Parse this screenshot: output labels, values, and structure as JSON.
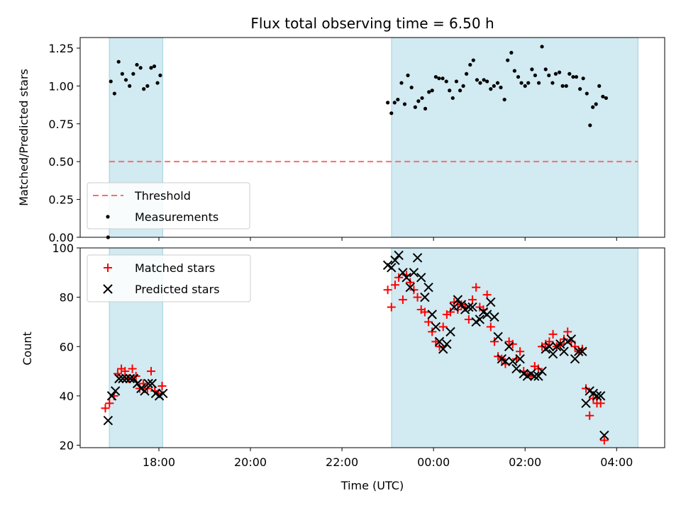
{
  "title": "Flux total observing time = 6.50 h",
  "xlabel": "Time (UTC)",
  "x_tick_labels": [
    "18:00",
    "20:00",
    "22:00",
    "00:00",
    "02:00",
    "04:00"
  ],
  "colors": {
    "shade": "#add8e6",
    "threshold": "#ff6b6b",
    "matched": "#ff0000",
    "predicted": "#000000",
    "measurement": "#000000"
  },
  "chart_data": [
    {
      "type": "scatter",
      "ylabel": "Matched/Predicted stars",
      "ylim": [
        0,
        1.32
      ],
      "y_ticks": [
        "0.00",
        "0.25",
        "0.50",
        "0.75",
        "1.00",
        "1.25"
      ],
      "grid": false,
      "legend_position": "lower-left",
      "shaded_intervals": [
        [
          "16:55",
          "18:05"
        ],
        [
          "23:05",
          "04:28"
        ]
      ],
      "threshold": {
        "name": "Threshold",
        "value": 0.5,
        "x_range": [
          "16:55",
          "04:28"
        ]
      },
      "measurements": {
        "name": "Measurements",
        "points": [
          [
            16.89,
            0.0
          ],
          [
            16.95,
            1.03
          ],
          [
            17.03,
            0.95
          ],
          [
            17.12,
            1.16
          ],
          [
            17.2,
            1.08
          ],
          [
            17.28,
            1.04
          ],
          [
            17.36,
            1.0
          ],
          [
            17.44,
            1.08
          ],
          [
            17.52,
            1.14
          ],
          [
            17.6,
            1.12
          ],
          [
            17.67,
            0.98
          ],
          [
            17.75,
            1.0
          ],
          [
            17.83,
            1.12
          ],
          [
            17.9,
            1.13
          ],
          [
            17.97,
            1.02
          ],
          [
            18.03,
            1.07
          ],
          [
            23.0,
            0.89
          ],
          [
            23.08,
            0.82
          ],
          [
            23.15,
            0.89
          ],
          [
            23.22,
            0.91
          ],
          [
            23.3,
            1.02
          ],
          [
            23.37,
            0.88
          ],
          [
            23.44,
            1.07
          ],
          [
            23.52,
            0.99
          ],
          [
            23.6,
            0.86
          ],
          [
            23.67,
            0.9
          ],
          [
            23.75,
            0.92
          ],
          [
            23.82,
            0.85
          ],
          [
            23.9,
            0.96
          ],
          [
            23.97,
            0.97
          ],
          [
            24.05,
            1.06
          ],
          [
            24.12,
            1.05
          ],
          [
            24.2,
            1.05
          ],
          [
            24.28,
            1.03
          ],
          [
            24.35,
            0.97
          ],
          [
            24.42,
            0.92
          ],
          [
            24.5,
            1.03
          ],
          [
            24.58,
            0.97
          ],
          [
            24.65,
            1.0
          ],
          [
            24.72,
            1.08
          ],
          [
            24.8,
            1.14
          ],
          [
            24.87,
            1.17
          ],
          [
            24.95,
            1.04
          ],
          [
            25.02,
            1.02
          ],
          [
            25.1,
            1.04
          ],
          [
            25.17,
            1.03
          ],
          [
            25.25,
            0.98
          ],
          [
            25.32,
            1.0
          ],
          [
            25.4,
            1.02
          ],
          [
            25.47,
            0.99
          ],
          [
            25.55,
            0.91
          ],
          [
            25.62,
            1.17
          ],
          [
            25.7,
            1.22
          ],
          [
            25.77,
            1.1
          ],
          [
            25.85,
            1.06
          ],
          [
            25.92,
            1.02
          ],
          [
            26.0,
            1.0
          ],
          [
            26.07,
            1.02
          ],
          [
            26.15,
            1.11
          ],
          [
            26.22,
            1.07
          ],
          [
            26.3,
            1.02
          ],
          [
            26.37,
            1.26
          ],
          [
            26.45,
            1.11
          ],
          [
            26.52,
            1.07
          ],
          [
            26.6,
            1.02
          ],
          [
            26.67,
            1.08
          ],
          [
            26.75,
            1.09
          ],
          [
            26.82,
            1.0
          ],
          [
            26.9,
            1.0
          ],
          [
            26.97,
            1.08
          ],
          [
            27.05,
            1.06
          ],
          [
            27.12,
            1.06
          ],
          [
            27.2,
            0.98
          ],
          [
            27.27,
            1.05
          ],
          [
            27.35,
            0.95
          ],
          [
            27.42,
            0.74
          ],
          [
            27.48,
            0.86
          ],
          [
            27.55,
            0.88
          ],
          [
            27.62,
            1.0
          ],
          [
            27.7,
            0.93
          ],
          [
            27.77,
            0.92
          ]
        ]
      }
    },
    {
      "type": "scatter",
      "ylabel": "Count",
      "ylim": [
        19,
        100
      ],
      "y_ticks": [
        "20",
        "40",
        "60",
        "80",
        "100"
      ],
      "grid": false,
      "legend_position": "upper-left",
      "shaded_intervals": [
        [
          "16:55",
          "18:05"
        ],
        [
          "23:05",
          "04:28"
        ]
      ],
      "series": [
        {
          "name": "Matched stars",
          "marker": "plus",
          "points": [
            [
              16.83,
              35
            ],
            [
              16.92,
              37
            ],
            [
              17.02,
              40
            ],
            [
              17.1,
              49
            ],
            [
              17.18,
              51
            ],
            [
              17.26,
              50
            ],
            [
              17.34,
              47
            ],
            [
              17.42,
              51
            ],
            [
              17.5,
              48
            ],
            [
              17.58,
              43
            ],
            [
              17.66,
              45
            ],
            [
              17.75,
              43
            ],
            [
              17.83,
              50
            ],
            [
              17.91,
              42
            ],
            [
              17.99,
              41
            ],
            [
              18.07,
              44
            ],
            [
              23.0,
              83
            ],
            [
              23.08,
              76
            ],
            [
              23.16,
              85
            ],
            [
              23.24,
              88
            ],
            [
              23.33,
              79
            ],
            [
              23.41,
              89
            ],
            [
              23.49,
              86
            ],
            [
              23.57,
              83
            ],
            [
              23.65,
              80
            ],
            [
              23.73,
              75
            ],
            [
              23.81,
              74
            ],
            [
              23.89,
              70
            ],
            [
              23.97,
              66
            ],
            [
              24.05,
              62
            ],
            [
              24.13,
              60
            ],
            [
              24.21,
              68
            ],
            [
              24.29,
              73
            ],
            [
              24.37,
              74
            ],
            [
              24.45,
              78
            ],
            [
              24.53,
              75
            ],
            [
              24.61,
              77
            ],
            [
              24.69,
              76
            ],
            [
              24.77,
              71
            ],
            [
              24.85,
              79
            ],
            [
              24.93,
              84
            ],
            [
              25.01,
              76
            ],
            [
              25.09,
              75
            ],
            [
              25.17,
              81
            ],
            [
              25.25,
              68
            ],
            [
              25.33,
              62
            ],
            [
              25.41,
              56
            ],
            [
              25.49,
              55
            ],
            [
              25.57,
              53
            ],
            [
              25.65,
              62
            ],
            [
              25.73,
              61
            ],
            [
              25.81,
              55
            ],
            [
              25.89,
              58
            ],
            [
              25.97,
              50
            ],
            [
              26.05,
              49
            ],
            [
              26.13,
              48
            ],
            [
              26.21,
              52
            ],
            [
              26.29,
              51
            ],
            [
              26.37,
              60
            ],
            [
              26.45,
              61
            ],
            [
              26.53,
              62
            ],
            [
              26.61,
              65
            ],
            [
              26.69,
              60
            ],
            [
              26.77,
              61
            ],
            [
              26.85,
              63
            ],
            [
              26.93,
              66
            ],
            [
              27.01,
              62
            ],
            [
              27.09,
              60
            ],
            [
              27.17,
              58
            ],
            [
              27.25,
              59
            ],
            [
              27.33,
              43
            ],
            [
              27.41,
              32
            ],
            [
              27.49,
              39
            ],
            [
              27.57,
              37
            ],
            [
              27.65,
              37
            ],
            [
              27.73,
              22
            ]
          ]
        },
        {
          "name": "Predicted stars",
          "marker": "x",
          "points": [
            [
              16.89,
              30
            ],
            [
              16.97,
              40
            ],
            [
              17.05,
              42
            ],
            [
              17.13,
              47
            ],
            [
              17.21,
              47
            ],
            [
              17.29,
              47
            ],
            [
              17.37,
              47
            ],
            [
              17.45,
              47
            ],
            [
              17.53,
              45
            ],
            [
              17.61,
              43
            ],
            [
              17.69,
              42
            ],
            [
              17.77,
              45
            ],
            [
              17.85,
              45
            ],
            [
              17.93,
              41
            ],
            [
              18.01,
              40
            ],
            [
              18.09,
              41
            ],
            [
              23.0,
              93
            ],
            [
              23.08,
              92
            ],
            [
              23.16,
              95
            ],
            [
              23.24,
              97
            ],
            [
              23.33,
              90
            ],
            [
              23.41,
              88
            ],
            [
              23.49,
              84
            ],
            [
              23.57,
              90
            ],
            [
              23.65,
              96
            ],
            [
              23.73,
              88
            ],
            [
              23.81,
              80
            ],
            [
              23.89,
              84
            ],
            [
              23.97,
              73
            ],
            [
              24.05,
              68
            ],
            [
              24.13,
              62
            ],
            [
              24.21,
              59
            ],
            [
              24.29,
              61
            ],
            [
              24.37,
              66
            ],
            [
              24.45,
              76
            ],
            [
              24.53,
              79
            ],
            [
              24.61,
              77
            ],
            [
              24.69,
              75
            ],
            [
              24.77,
              76
            ],
            [
              24.85,
              76
            ],
            [
              24.93,
              70
            ],
            [
              25.01,
              71
            ],
            [
              25.09,
              74
            ],
            [
              25.17,
              73
            ],
            [
              25.25,
              78
            ],
            [
              25.33,
              72
            ],
            [
              25.41,
              64
            ],
            [
              25.49,
              55
            ],
            [
              25.57,
              54
            ],
            [
              25.65,
              60
            ],
            [
              25.73,
              54
            ],
            [
              25.81,
              51
            ],
            [
              25.89,
              55
            ],
            [
              25.97,
              49
            ],
            [
              26.05,
              48
            ],
            [
              26.13,
              49
            ],
            [
              26.21,
              48
            ],
            [
              26.29,
              48
            ],
            [
              26.37,
              50
            ],
            [
              26.45,
              59
            ],
            [
              26.53,
              60
            ],
            [
              26.61,
              57
            ],
            [
              26.69,
              60
            ],
            [
              26.77,
              61
            ],
            [
              26.85,
              58
            ],
            [
              26.93,
              62
            ],
            [
              27.01,
              63
            ],
            [
              27.09,
              55
            ],
            [
              27.17,
              58
            ],
            [
              27.25,
              58
            ],
            [
              27.33,
              37
            ],
            [
              27.41,
              42
            ],
            [
              27.49,
              41
            ],
            [
              27.57,
              40
            ],
            [
              27.65,
              40
            ],
            [
              27.73,
              24
            ]
          ]
        }
      ]
    }
  ]
}
